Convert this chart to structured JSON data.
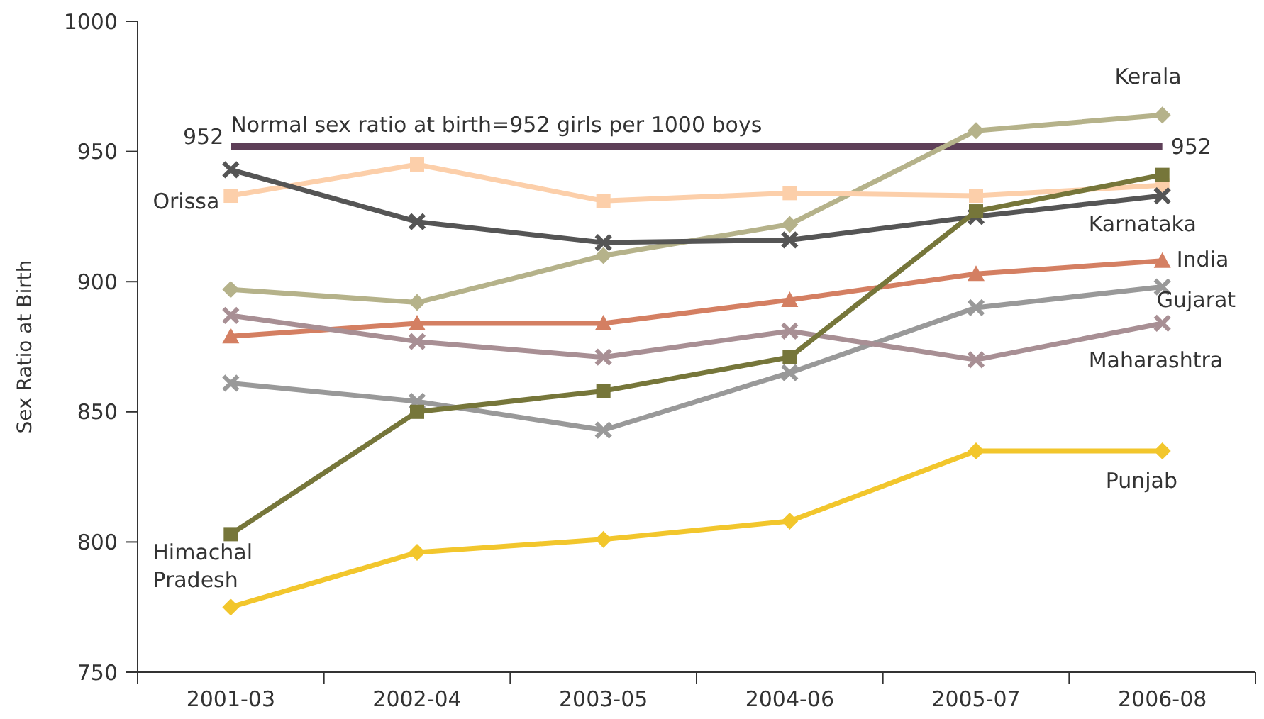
{
  "chart_data": {
    "type": "line",
    "ylabel": "Sex Ratio at Birth",
    "categories": [
      "2001-03",
      "2002-04",
      "2003-05",
      "2004-06",
      "2005-07",
      "2006-08"
    ],
    "ylim": [
      750,
      1000
    ],
    "yticks": [
      750,
      800,
      850,
      900,
      950,
      1000
    ],
    "grid": false,
    "series": [
      {
        "name": "Kerala",
        "color": "#b5b28a",
        "marker": "diamond",
        "values": [
          897,
          892,
          910,
          922,
          958,
          964
        ]
      },
      {
        "name": "Orissa",
        "color": "#fccfaa",
        "marker": "square",
        "values": [
          933,
          945,
          931,
          934,
          933,
          937
        ]
      },
      {
        "name": "Karnataka",
        "color": "#555555",
        "marker": "cross",
        "values": [
          943,
          923,
          915,
          916,
          925,
          933
        ]
      },
      {
        "name": "India",
        "color": "#d47f62",
        "marker": "triangle",
        "values": [
          879,
          884,
          884,
          893,
          903,
          908
        ]
      },
      {
        "name": "Gujarat",
        "color": "#999999",
        "marker": "cross",
        "values": [
          861,
          854,
          843,
          865,
          890,
          898
        ]
      },
      {
        "name": "Maharashtra",
        "color": "#a88f94",
        "marker": "cross",
        "values": [
          887,
          877,
          871,
          881,
          870,
          884
        ]
      },
      {
        "name": "Himachal Pradesh",
        "color": "#76763a",
        "marker": "square",
        "values": [
          803,
          850,
          858,
          871,
          927,
          941
        ]
      },
      {
        "name": "Punjab",
        "color": "#f2c62c",
        "marker": "diamond",
        "values": [
          775,
          796,
          801,
          808,
          835,
          835
        ]
      }
    ],
    "ref_lines": [
      {
        "axis": "y",
        "value": 952,
        "label": "952",
        "color": "#5e3f58"
      }
    ],
    "annotations": [
      "Normal sex ratio at birth=952 girls per 1000 boys"
    ]
  }
}
